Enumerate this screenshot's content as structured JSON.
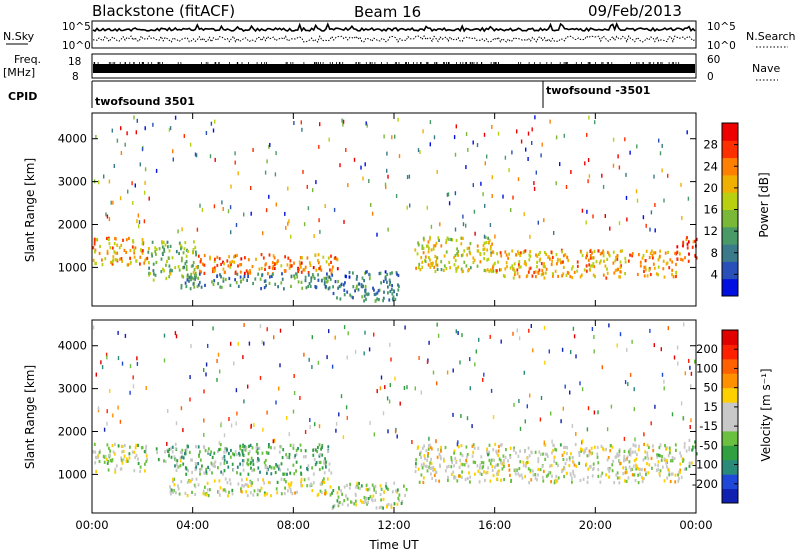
{
  "header": {
    "radar": "Blackstone (fitACF)",
    "beam": "Beam 16",
    "date": "09/Feb/2013"
  },
  "top_panels": {
    "nsky_label": "N.Sky",
    "nsky_ticks": [
      "10^5",
      "10^0"
    ],
    "nsearch_label": "N.Search",
    "nsearch_ticks": [
      "10^5",
      "10^0"
    ],
    "freq_label": "Freq.",
    "freq_unit": "[MHz]",
    "freq_ticks": [
      "18",
      "8"
    ],
    "nave_label": "Nave",
    "nave_ticks": [
      "60",
      "0"
    ],
    "cpid_label": "CPID",
    "cpid_segments": [
      {
        "label": "twofsound 3501",
        "start_hour": 0
      },
      {
        "label": "twofsound -3501",
        "start_hour": 18
      }
    ]
  },
  "chart_data": [
    {
      "type": "heatmap",
      "name": "power",
      "ylabel": "Slant Range [km]",
      "xlabel": "",
      "ylim": [
        100,
        4600
      ],
      "y_ticks": [
        1000,
        2000,
        3000,
        4000
      ],
      "xlim": [
        0,
        24
      ],
      "x_ticks": [
        "00:00",
        "04:00",
        "08:00",
        "12:00",
        "16:00",
        "20:00",
        "00:00"
      ],
      "colorbar": {
        "label": "Power [dB]",
        "range": [
          0,
          32
        ],
        "ticks": [
          4,
          8,
          12,
          16,
          20,
          24,
          28
        ],
        "colors": [
          "#0010e0",
          "#2850b8",
          "#3a7a8a",
          "#4a9a68",
          "#7ab838",
          "#b8d010",
          "#f0b000",
          "#ff8000",
          "#ff3000",
          "#ee0000"
        ]
      },
      "regions": [
        {
          "t0": 0.0,
          "t1": 2.2,
          "r0": 1050,
          "r1": 1700,
          "level": 22
        },
        {
          "t0": 2.2,
          "t1": 4.2,
          "r0": 700,
          "r1": 1600,
          "level": 14
        },
        {
          "t0": 4.2,
          "t1": 9.8,
          "r0": 850,
          "r1": 1300,
          "level": 24
        },
        {
          "t0": 3.5,
          "t1": 9.5,
          "r0": 500,
          "r1": 850,
          "level": 10
        },
        {
          "t0": 9.5,
          "t1": 12.2,
          "r0": 200,
          "r1": 900,
          "level": 8
        },
        {
          "t0": 12.8,
          "t1": 16.0,
          "r0": 900,
          "r1": 1700,
          "level": 18
        },
        {
          "t0": 16.0,
          "t1": 23.2,
          "r0": 750,
          "r1": 1400,
          "level": 22
        },
        {
          "t0": 23.2,
          "t1": 24.0,
          "r0": 1100,
          "r1": 1700,
          "level": 26
        }
      ]
    },
    {
      "type": "heatmap",
      "name": "velocity",
      "ylabel": "Slant Range [km]",
      "xlabel": "Time UT",
      "ylim": [
        100,
        4600
      ],
      "y_ticks": [
        1000,
        2000,
        3000,
        4000
      ],
      "xlim": [
        0,
        24
      ],
      "x_ticks": [
        "00:00",
        "04:00",
        "08:00",
        "12:00",
        "16:00",
        "20:00",
        "00:00"
      ],
      "colorbar": {
        "label": "Velocity [m s⁻¹]",
        "range": [
          -250,
          250
        ],
        "tick_labels": [
          "200",
          "100",
          "50",
          "15",
          "-15",
          "-50",
          "-100",
          "-200"
        ],
        "colors": [
          "#1020b0",
          "#2048d8",
          "#2a8a7a",
          "#30a040",
          "#6cc040",
          "#c8c8c8",
          "#c8c8c8",
          "#ffd000",
          "#ff9000",
          "#ff6000",
          "#ff2000",
          "#e00000"
        ]
      },
      "regions": [
        {
          "t0": 0.0,
          "t1": 2.2,
          "r0": 1050,
          "r1": 1700,
          "level": -5
        },
        {
          "t0": 2.5,
          "t1": 4.0,
          "r0": 1300,
          "r1": 1600,
          "level": -40
        },
        {
          "t0": 3.0,
          "t1": 9.5,
          "r0": 1000,
          "r1": 1700,
          "level": -70
        },
        {
          "t0": 3.0,
          "t1": 9.5,
          "r0": 500,
          "r1": 900,
          "level": 0
        },
        {
          "t0": 9.5,
          "t1": 12.5,
          "r0": 200,
          "r1": 800,
          "level": -20
        },
        {
          "t0": 12.8,
          "t1": 23.5,
          "r0": 800,
          "r1": 1700,
          "level": 5
        },
        {
          "t0": 23.5,
          "t1": 24.0,
          "r0": 1100,
          "r1": 1800,
          "level": -30
        }
      ]
    }
  ]
}
